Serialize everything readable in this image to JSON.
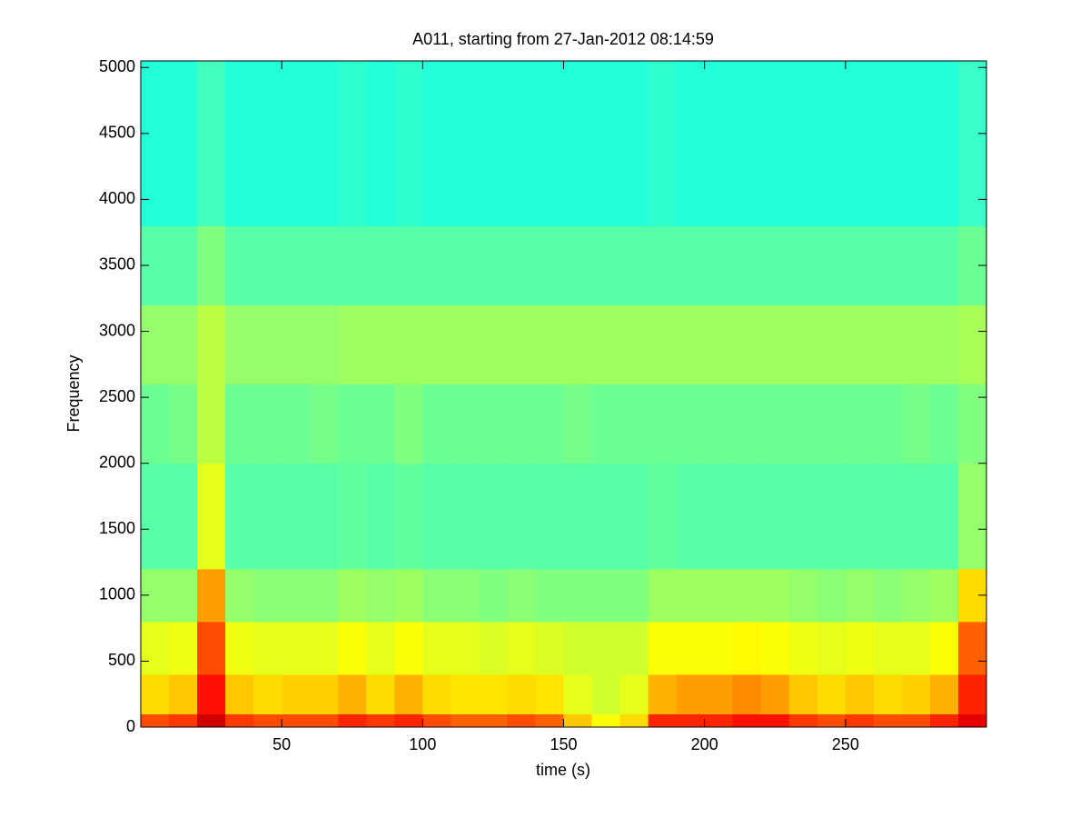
{
  "chart_data": {
    "type": "spectrogram",
    "title": "A011, starting from 27-Jan-2012 08:14:59",
    "x_label": "time (s)",
    "y_label": "Frequency",
    "colormap": "jet",
    "clim": [
      0,
      1
    ],
    "xlim": [
      0,
      300
    ],
    "ylim": [
      0,
      5050
    ],
    "xticks": [
      50,
      100,
      150,
      200,
      250
    ],
    "yticks": [
      0,
      500,
      1000,
      1500,
      2000,
      2500,
      3000,
      3500,
      4000,
      4500,
      5000
    ],
    "x_edges": [
      0,
      10,
      20,
      30,
      40,
      50,
      60,
      70,
      80,
      90,
      100,
      110,
      120,
      130,
      140,
      150,
      160,
      170,
      180,
      190,
      200,
      210,
      220,
      230,
      240,
      250,
      260,
      270,
      280,
      290,
      300
    ],
    "y_edges": [
      0,
      100,
      400,
      800,
      1200,
      2000,
      2600,
      3200,
      3800,
      5050
    ],
    "values": [
      [
        0.8,
        0.82,
        0.92,
        0.82,
        0.8,
        0.8,
        0.8,
        0.84,
        0.82,
        0.84,
        0.8,
        0.78,
        0.78,
        0.8,
        0.78,
        0.68,
        0.62,
        0.66,
        0.84,
        0.84,
        0.84,
        0.86,
        0.86,
        0.82,
        0.8,
        0.82,
        0.8,
        0.8,
        0.84,
        0.9
      ],
      [
        0.66,
        0.68,
        0.86,
        0.68,
        0.66,
        0.67,
        0.67,
        0.7,
        0.66,
        0.7,
        0.66,
        0.65,
        0.65,
        0.66,
        0.65,
        0.6,
        0.58,
        0.6,
        0.7,
        0.72,
        0.72,
        0.74,
        0.72,
        0.68,
        0.66,
        0.68,
        0.66,
        0.67,
        0.7,
        0.84
      ],
      [
        0.6,
        0.61,
        0.8,
        0.61,
        0.6,
        0.6,
        0.6,
        0.62,
        0.6,
        0.62,
        0.6,
        0.6,
        0.59,
        0.6,
        0.59,
        0.58,
        0.58,
        0.58,
        0.62,
        0.62,
        0.62,
        0.63,
        0.62,
        0.61,
        0.6,
        0.61,
        0.6,
        0.6,
        0.62,
        0.78
      ],
      [
        0.52,
        0.52,
        0.72,
        0.52,
        0.51,
        0.51,
        0.51,
        0.53,
        0.52,
        0.53,
        0.51,
        0.51,
        0.5,
        0.51,
        0.5,
        0.5,
        0.5,
        0.5,
        0.53,
        0.53,
        0.53,
        0.53,
        0.53,
        0.52,
        0.51,
        0.52,
        0.51,
        0.52,
        0.53,
        0.66
      ],
      [
        0.46,
        0.46,
        0.6,
        0.46,
        0.46,
        0.46,
        0.46,
        0.47,
        0.46,
        0.47,
        0.46,
        0.46,
        0.46,
        0.46,
        0.46,
        0.46,
        0.46,
        0.46,
        0.47,
        0.46,
        0.46,
        0.46,
        0.46,
        0.46,
        0.46,
        0.46,
        0.46,
        0.46,
        0.46,
        0.52
      ],
      [
        0.48,
        0.49,
        0.56,
        0.48,
        0.48,
        0.48,
        0.49,
        0.48,
        0.48,
        0.5,
        0.48,
        0.48,
        0.48,
        0.48,
        0.48,
        0.49,
        0.48,
        0.48,
        0.48,
        0.48,
        0.48,
        0.48,
        0.48,
        0.48,
        0.48,
        0.48,
        0.48,
        0.49,
        0.48,
        0.5
      ],
      [
        0.52,
        0.52,
        0.56,
        0.52,
        0.52,
        0.52,
        0.52,
        0.53,
        0.53,
        0.53,
        0.53,
        0.53,
        0.53,
        0.53,
        0.53,
        0.53,
        0.53,
        0.53,
        0.53,
        0.53,
        0.53,
        0.53,
        0.53,
        0.53,
        0.53,
        0.53,
        0.53,
        0.53,
        0.53,
        0.54
      ],
      [
        0.46,
        0.46,
        0.5,
        0.46,
        0.46,
        0.46,
        0.46,
        0.46,
        0.46,
        0.46,
        0.46,
        0.46,
        0.46,
        0.46,
        0.46,
        0.46,
        0.46,
        0.46,
        0.46,
        0.46,
        0.46,
        0.46,
        0.46,
        0.46,
        0.46,
        0.46,
        0.46,
        0.46,
        0.46,
        0.48
      ],
      [
        0.41,
        0.41,
        0.44,
        0.41,
        0.41,
        0.41,
        0.41,
        0.42,
        0.41,
        0.42,
        0.41,
        0.41,
        0.41,
        0.41,
        0.41,
        0.41,
        0.41,
        0.41,
        0.42,
        0.41,
        0.41,
        0.41,
        0.41,
        0.41,
        0.41,
        0.41,
        0.41,
        0.41,
        0.41,
        0.43
      ]
    ]
  }
}
